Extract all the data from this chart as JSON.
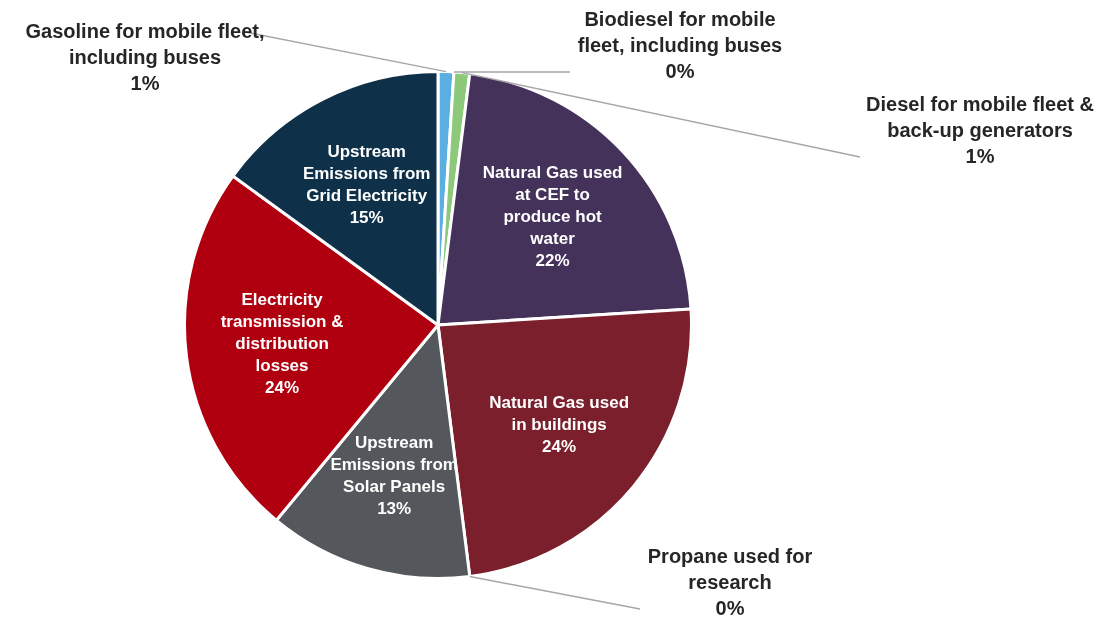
{
  "chart_data": {
    "type": "pie",
    "categories": [
      "Gasoline for mobile fleet, including buses",
      "Biodiesel for mobile fleet, including buses",
      "Diesel for mobile fleet & back-up generators",
      "Natural Gas used at CEF to produce hot water",
      "Natural Gas used in buildings",
      "Propane used for research",
      "Upstream Emissions from Solar Panels",
      "Electricity transmission & distribution losses",
      "Upstream Emissions from Grid Electricity"
    ],
    "values": [
      1,
      0,
      1,
      22,
      24,
      0,
      13,
      24,
      15
    ],
    "value_labels": [
      "1%",
      "0%",
      "1%",
      "22%",
      "24%",
      "0%",
      "13%",
      "24%",
      "15%"
    ],
    "colors": [
      "#5aaee0",
      "#9acd80",
      "#8cc97a",
      "#45325a",
      "#7a1f2b",
      "#3a3a3a",
      "#54575b",
      "#b0000f",
      "#0f3049"
    ]
  }
}
